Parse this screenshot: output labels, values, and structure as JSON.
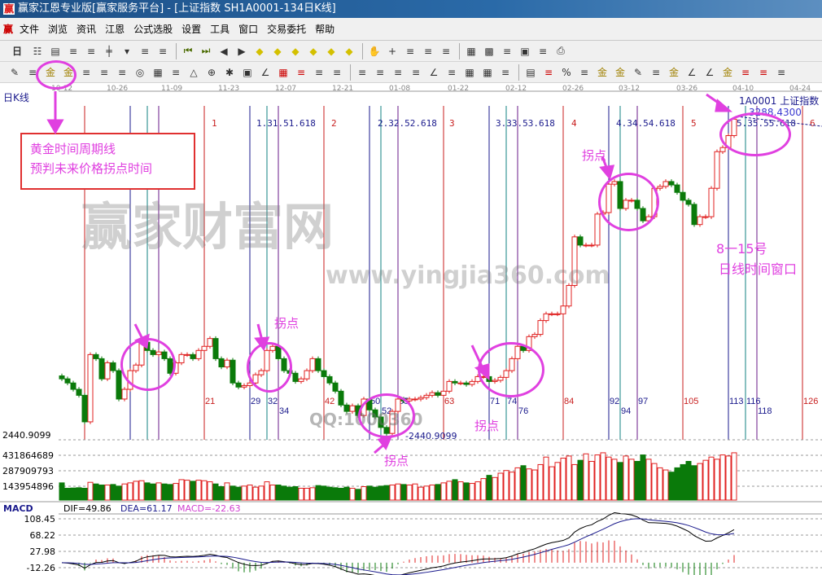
{
  "window": {
    "title": "赢家江恩专业版[赢家服务平台] - [上证指数  SH1A0001-134日K线]",
    "logo": "赢"
  },
  "menu": {
    "logo": "赢",
    "items": [
      "文件",
      "浏览",
      "资讯",
      "江恩",
      "公式选股",
      "设置",
      "工具",
      "窗口",
      "交易委托",
      "帮助"
    ]
  },
  "toolbar1": {
    "period_label": "日",
    "icons": [
      "period-dropdown",
      "chart-icon",
      "list-icon",
      "chart3-icon",
      "chart9-icon",
      "candle-icon",
      "dropdown",
      "gann-icon",
      "flag-icon",
      "|",
      "first-icon",
      "last-icon",
      "left-icon",
      "right-icon",
      "diamond-left-icon",
      "diamond-right-icon",
      "diamond-lr-icon",
      "diamond-collapse-icon",
      "diamond-expand-icon",
      "diamond-vert-icon",
      "|",
      "hand-icon",
      "crosshair-icon",
      "wave-icon",
      "node-icon",
      "line-icon",
      "|",
      "calendar-icon",
      "calculator-icon",
      "notes-icon",
      "save-icon",
      "network-icon",
      "printer-icon"
    ]
  },
  "toolbar2": {
    "icons": [
      "pen-icon",
      "parallel-icon",
      "gold-time-icon",
      "gold-icon",
      "fib-icon",
      "spiral-icon",
      "marker-icon",
      "circle-icon",
      "grid-lines-icon",
      "n2-icon",
      "triangle-icon",
      "target-icon",
      "star-icon",
      "square-icon",
      "angle-icon",
      "red-grid-icon",
      "red-box-icon",
      "ruler-icon",
      "measure-icon",
      "|",
      "box-icon",
      "fan-icon",
      "gann-box-icon",
      "gann-square-icon",
      "angle-line-icon",
      "zigzag-icon",
      "grid-icon",
      "grid2-icon",
      "parallel2-icon",
      "|",
      "list-icon",
      "percent-red-icon",
      "percent-icon",
      "percent-line-icon",
      "gold-circle-icon",
      "gold-line-icon",
      "pen2-icon",
      "wave2-icon",
      "gold2-icon",
      "j-angle-icon",
      "f-angle-icon",
      "gold-angle-icon",
      "shen-icon",
      "ying-icon",
      "si-icon"
    ]
  },
  "chart": {
    "period_label": "日K线",
    "symbol_label": "1A0001  上证指数",
    "last_price_label": "3288.4300",
    "low_label": "2440.9099",
    "low_marker_label": "-2440.9099",
    "date_ticks": [
      "10-12",
      "10-26",
      "11-09",
      "11-23",
      "12-07",
      "12-21",
      "01-08",
      "01-22",
      "02-12",
      "02-26",
      "03-12",
      "03-26",
      "04-10",
      "04-24"
    ],
    "volume_ticks": [
      "431864689",
      "287909793",
      "143954896"
    ],
    "macd": {
      "title": "MACD",
      "dif": "DIF=49.86",
      "dea": "DEA=61.17",
      "macd": "MACD=-22.63",
      "ticks": [
        "108.45",
        "68.22",
        "27.98",
        "-12.26"
      ]
    },
    "cycle_top_labels": [
      "1",
      "1.31.51.618",
      "2",
      "2.32.52.618",
      "3",
      "3.33.53.618",
      "4",
      "4.34.54.618",
      "5",
      "5.35.55.618",
      "6"
    ],
    "cycle_bottom_labels": [
      "21",
      "29",
      "32",
      "34",
      "42",
      "50",
      "52",
      "55",
      "63",
      "71",
      "74",
      "76",
      "84",
      "92",
      "94",
      "97",
      "105",
      "113",
      "116",
      "118",
      "126"
    ],
    "colors": {
      "up": "#e02020",
      "down": "#0a7a0a",
      "cycle_red": "#c81e1e",
      "cycle_blue": "#1a1a8c",
      "cycle_teal": "#108080",
      "cycle_purple": "#6a1a8a",
      "annotation": "#e040e0",
      "dif": "#000000",
      "dea": "#1a1a8c"
    }
  },
  "chart_data": {
    "type": "candlestick",
    "price_range": [
      2440.9099,
      3288.43
    ],
    "closes": [
      2604,
      2593,
      2576,
      2560,
      2489,
      2669,
      2658,
      2604,
      2647,
      2626,
      2550,
      2576,
      2626,
      2641,
      2702,
      2680,
      2669,
      2676,
      2658,
      2619,
      2647,
      2669,
      2669,
      2658,
      2680,
      2691,
      2712,
      2658,
      2636,
      2654,
      2593,
      2582,
      2586,
      2593,
      2615,
      2626,
      2680,
      2691,
      2658,
      2626,
      2619,
      2597,
      2604,
      2626,
      2658,
      2626,
      2610,
      2593,
      2571,
      2534,
      2517,
      2532,
      2506,
      2550,
      2521,
      2502,
      2474,
      2458,
      2517,
      2550,
      2545,
      2550,
      2550,
      2554,
      2560,
      2567,
      2560,
      2571,
      2597,
      2593,
      2593,
      2589,
      2597,
      2610,
      2610,
      2597,
      2600,
      2608,
      2626,
      2658,
      2691,
      2680,
      2717,
      2723,
      2760,
      2778,
      2778,
      2778,
      2799,
      2854,
      2984,
      2962,
      2962,
      2962,
      3045,
      3049,
      3125,
      3132,
      3060,
      3082,
      3082,
      3060,
      3027,
      3038,
      3114,
      3119,
      3132,
      3123,
      3103,
      3082,
      3071,
      3017,
      3038,
      3038,
      3114,
      3212,
      3223,
      3255,
      3299
    ],
    "volumes_millions": [
      160,
      110,
      112,
      115,
      110,
      165,
      150,
      140,
      140,
      145,
      130,
      150,
      160,
      175,
      180,
      160,
      150,
      160,
      150,
      145,
      155,
      190,
      185,
      175,
      185,
      180,
      170,
      150,
      125,
      160,
      130,
      120,
      130,
      140,
      120,
      130,
      170,
      140,
      140,
      130,
      120,
      125,
      110,
      110,
      115,
      135,
      130,
      120,
      115,
      110,
      120,
      110,
      100,
      125,
      130,
      120,
      130,
      135,
      140,
      150,
      145,
      140,
      150,
      120,
      130,
      140,
      145,
      160,
      175,
      190,
      170,
      160,
      155,
      170,
      200,
      230,
      210,
      250,
      275,
      260,
      300,
      320,
      290,
      280,
      330,
      400,
      310,
      350,
      390,
      410,
      330,
      370,
      430,
      360,
      420,
      440,
      400,
      380,
      350,
      410,
      380,
      360,
      420,
      380,
      340,
      300,
      280,
      260,
      300,
      330,
      360,
      320,
      340,
      370,
      400,
      380,
      420,
      410,
      440
    ],
    "cycle_lines": {
      "red": [
        0,
        21,
        42,
        63,
        84,
        105,
        126
      ],
      "blue": [
        8,
        29,
        50,
        71,
        92,
        113
      ],
      "teal": [
        11,
        32,
        52,
        74,
        94,
        116
      ],
      "purple": [
        13,
        34,
        55,
        76,
        97,
        118
      ]
    }
  },
  "annotations": {
    "note_line1": "黄金时间周期线",
    "note_line2": "预判未来价格拐点时间",
    "turn1": "拐点",
    "turn2": "拐点",
    "turn3": "拐点",
    "turn4": "拐点",
    "window_line1": "8一15号",
    "window_line2": "日线时间窗口"
  },
  "watermark": {
    "brand": "赢家财富网",
    "url": "www.yingjia360.com",
    "qq": "QQ:1000360"
  }
}
